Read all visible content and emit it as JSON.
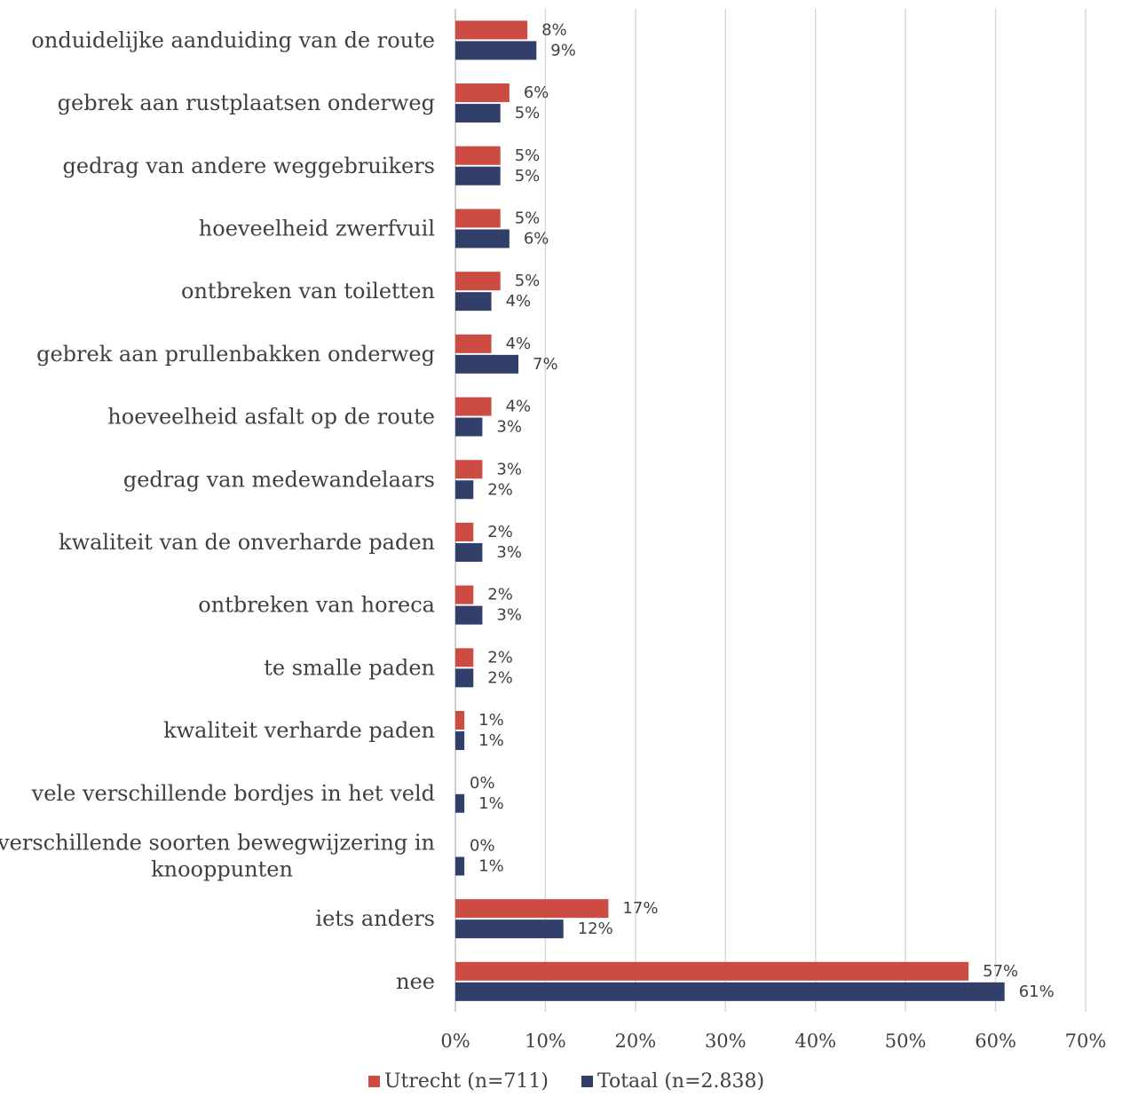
{
  "chart_data": {
    "type": "bar",
    "orientation": "horizontal",
    "title": "",
    "xlabel": "",
    "ylabel": "",
    "xlim": [
      0,
      70
    ],
    "x_ticks": [
      "0%",
      "10%",
      "20%",
      "30%",
      "40%",
      "50%",
      "60%",
      "70%"
    ],
    "grid": true,
    "legend_position": "bottom",
    "value_suffix": "%",
    "categories": [
      [
        "onduidelijke aanduiding van de route"
      ],
      [
        "gebrek aan rustplaatsen onderweg"
      ],
      [
        "gedrag van andere weggebruikers"
      ],
      [
        "hoeveelheid zwerfvuil"
      ],
      [
        "ontbreken van toiletten"
      ],
      [
        "gebrek aan prullenbakken onderweg"
      ],
      [
        "hoeveelheid asfalt op de route"
      ],
      [
        "gedrag van medewandelaars"
      ],
      [
        "kwaliteit van de onverharde paden"
      ],
      [
        "ontbreken van horeca"
      ],
      [
        "te smalle paden"
      ],
      [
        "kwaliteit verharde paden"
      ],
      [
        "vele verschillende bordjes in het veld"
      ],
      [
        "verschillende soorten bewegwijzering in",
        "knooppunten"
      ],
      [
        "iets anders"
      ],
      [
        "nee"
      ]
    ],
    "series": [
      {
        "name": "Utrecht (n=711)",
        "color": "#CC4B42",
        "values": [
          8,
          6,
          5,
          5,
          5,
          4,
          4,
          3,
          2,
          2,
          2,
          1,
          0,
          0,
          17,
          57
        ]
      },
      {
        "name": "Totaal (n=2.838)",
        "color": "#333F6B",
        "values": [
          9,
          5,
          5,
          6,
          4,
          7,
          3,
          2,
          3,
          3,
          2,
          1,
          1,
          1,
          12,
          61
        ]
      }
    ]
  }
}
